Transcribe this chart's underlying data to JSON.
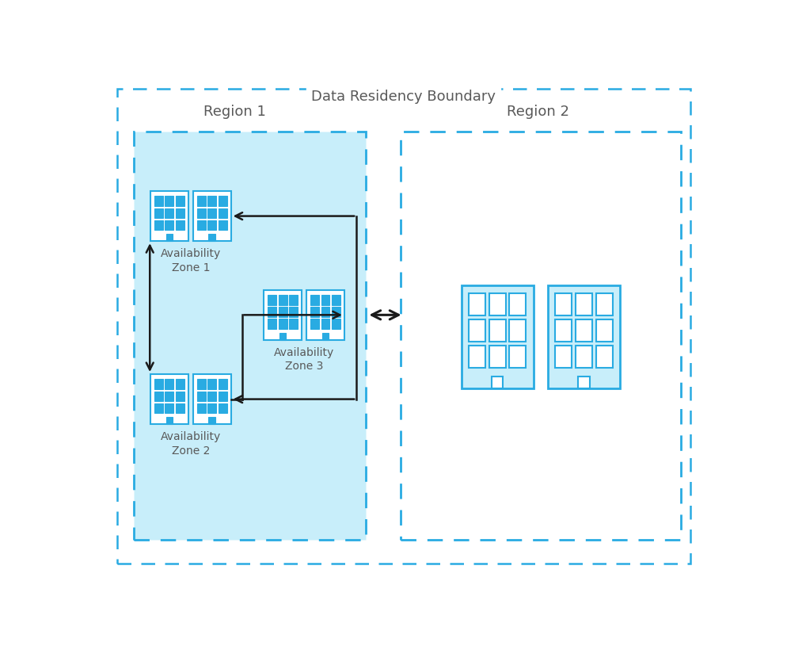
{
  "title": "Data Residency Boundary",
  "region1_label": "Region 1",
  "region2_label": "Region 2",
  "az1_label": "Availability\nZone 1",
  "az2_label": "Availability\nZone 2",
  "az3_label": "Availability\nZone 3",
  "bg_color": "#ffffff",
  "outer_border_color": "#29ABE2",
  "region1_fill": "#C8EEFA",
  "building_fill_small": "#ffffff",
  "building_fill_large": "#C8EEFA",
  "building_border_color": "#29ABE2",
  "window_fill_small": "#29ABE2",
  "window_fill_large": "#ffffff",
  "arrow_color": "#1a1a1a",
  "label_color": "#595959",
  "title_color": "#595959"
}
